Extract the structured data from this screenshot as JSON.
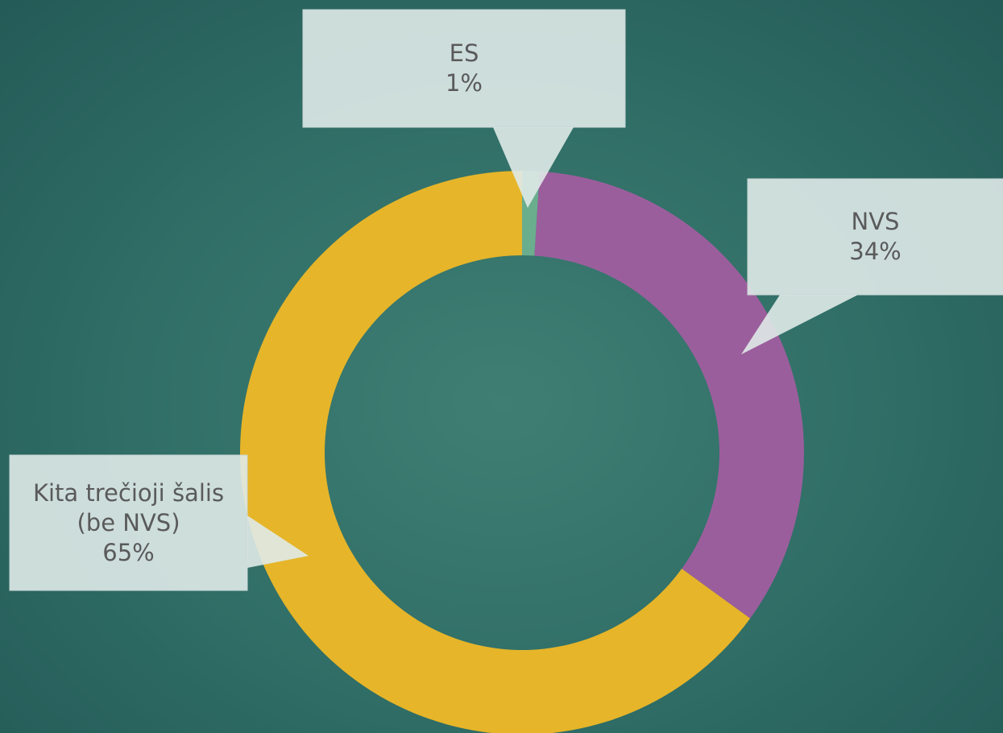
{
  "chart_data": {
    "type": "donut",
    "categories": [
      "ES",
      "NVS",
      "Kita trečioji šalis (be NVS)"
    ],
    "values": [
      1,
      34,
      65
    ],
    "value_labels": [
      "1%",
      "34%",
      "65%"
    ],
    "colors": [
      "#6aae8e",
      "#9b5e9c",
      "#e6b529"
    ]
  }
}
